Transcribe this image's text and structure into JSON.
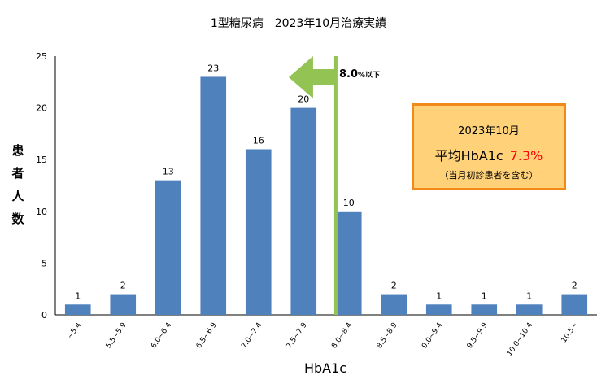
{
  "chart_data": {
    "type": "bar",
    "title": "1型糖尿病　2023年10月治療実績",
    "xlabel": "HbA1c",
    "ylabel": [
      "患",
      "者",
      "人",
      "数"
    ],
    "ylim": [
      0,
      25
    ],
    "yticks": [
      "0",
      "5",
      "10",
      "15",
      "20",
      "25"
    ],
    "categories": [
      "~5.4",
      "5.5~5.9",
      "6.0~6.4",
      "6.5~6.9",
      "7.0~7.4",
      "7.5~7.9",
      "8.0~8.4",
      "8.5~8.9",
      "9.0~9.4",
      "9.5~9.9",
      "10.0~10.4",
      "10.5~"
    ],
    "values": [
      1,
      2,
      13,
      23,
      16,
      20,
      10,
      2,
      1,
      1,
      1,
      2
    ],
    "bar_color": "#4f81bd",
    "grid": false,
    "threshold": {
      "value_label": "8.0",
      "unit_label": "%以下",
      "line_color": "#92c353"
    }
  },
  "callout": {
    "period": "2023年10月",
    "avg_label": "平均HbA1c",
    "avg_value": "7.3%",
    "note": "（当月初診患者を含む）",
    "bg_color": "#ffd27a",
    "border_color": "#f28a1a",
    "value_color": "#ff0000"
  }
}
